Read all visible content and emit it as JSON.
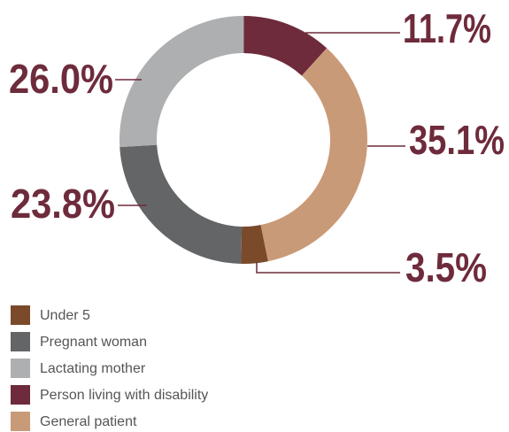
{
  "chart_data": {
    "type": "donut",
    "categories": [
      "Under 5",
      "Pregnant woman",
      "Lactating mother",
      "Person living with disability",
      "General patient"
    ],
    "values": [
      3.5,
      23.8,
      26.0,
      11.7,
      35.1
    ],
    "value_labels": [
      "3.5%",
      "23.8%",
      "26.0%",
      "11.7%",
      "35.1%"
    ],
    "colors": [
      "#7a4a2a",
      "#646566",
      "#aeafb1",
      "#6e2b3b",
      "#c99a78"
    ],
    "label_color": "#6e2b3b",
    "legend": "bottom-left"
  }
}
